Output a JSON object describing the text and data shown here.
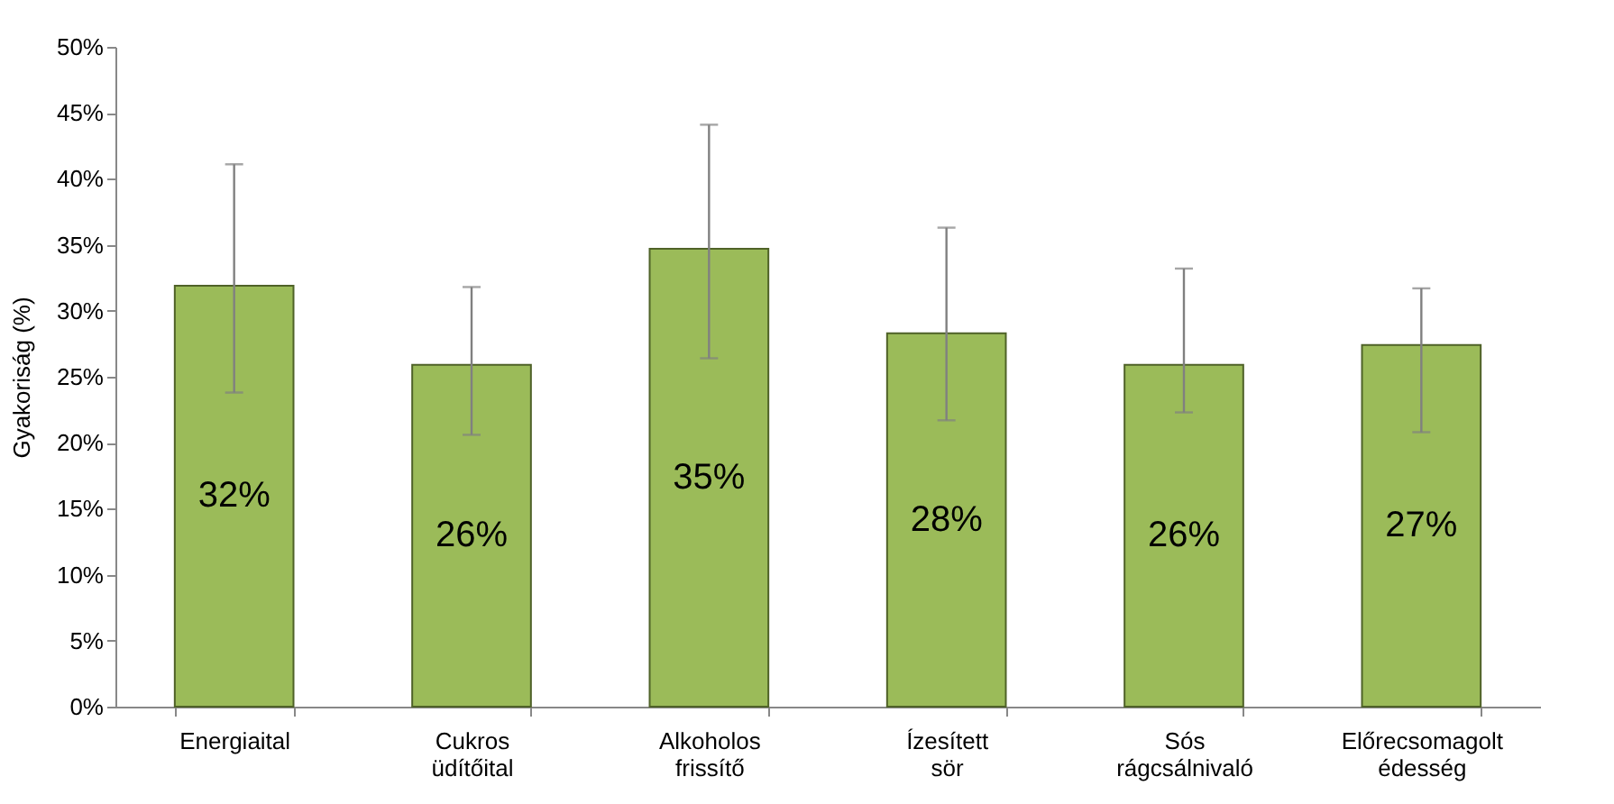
{
  "chart_data": {
    "type": "bar",
    "ylabel": "Gyakoriság (%)",
    "categories": [
      "Energiaital",
      "Cukros üdítőital",
      "Alkoholos frissítő",
      "Ízesített sör",
      "Sós rágcsálnivaló",
      "Előrecsomagolt édesség"
    ],
    "values": [
      31.9,
      25.9,
      34.7,
      28.3,
      25.9,
      27.4
    ],
    "value_labels": [
      "32%",
      "26%",
      "35%",
      "28%",
      "26%",
      "27%"
    ],
    "errors": [
      [
        23.8,
        41.1
      ],
      [
        20.6,
        31.8
      ],
      [
        26.4,
        44.1
      ],
      [
        21.7,
        36.3
      ],
      [
        22.3,
        33.2
      ],
      [
        20.8,
        31.7
      ]
    ],
    "color": "#9bbb59",
    "ylim": [
      0,
      50
    ],
    "yticks": [
      {
        "value": 0,
        "label": "0%"
      },
      {
        "value": 5,
        "label": "5%"
      },
      {
        "value": 10,
        "label": "10%"
      },
      {
        "value": 15,
        "label": "15%"
      },
      {
        "value": 20,
        "label": "20%"
      },
      {
        "value": 25,
        "label": "25%"
      },
      {
        "value": 30,
        "label": "30%"
      },
      {
        "value": 35,
        "label": "35%"
      },
      {
        "value": 40,
        "label": "40%"
      },
      {
        "value": 45,
        "label": "45%"
      },
      {
        "value": 50,
        "label": "50%"
      }
    ],
    "grid": false
  }
}
